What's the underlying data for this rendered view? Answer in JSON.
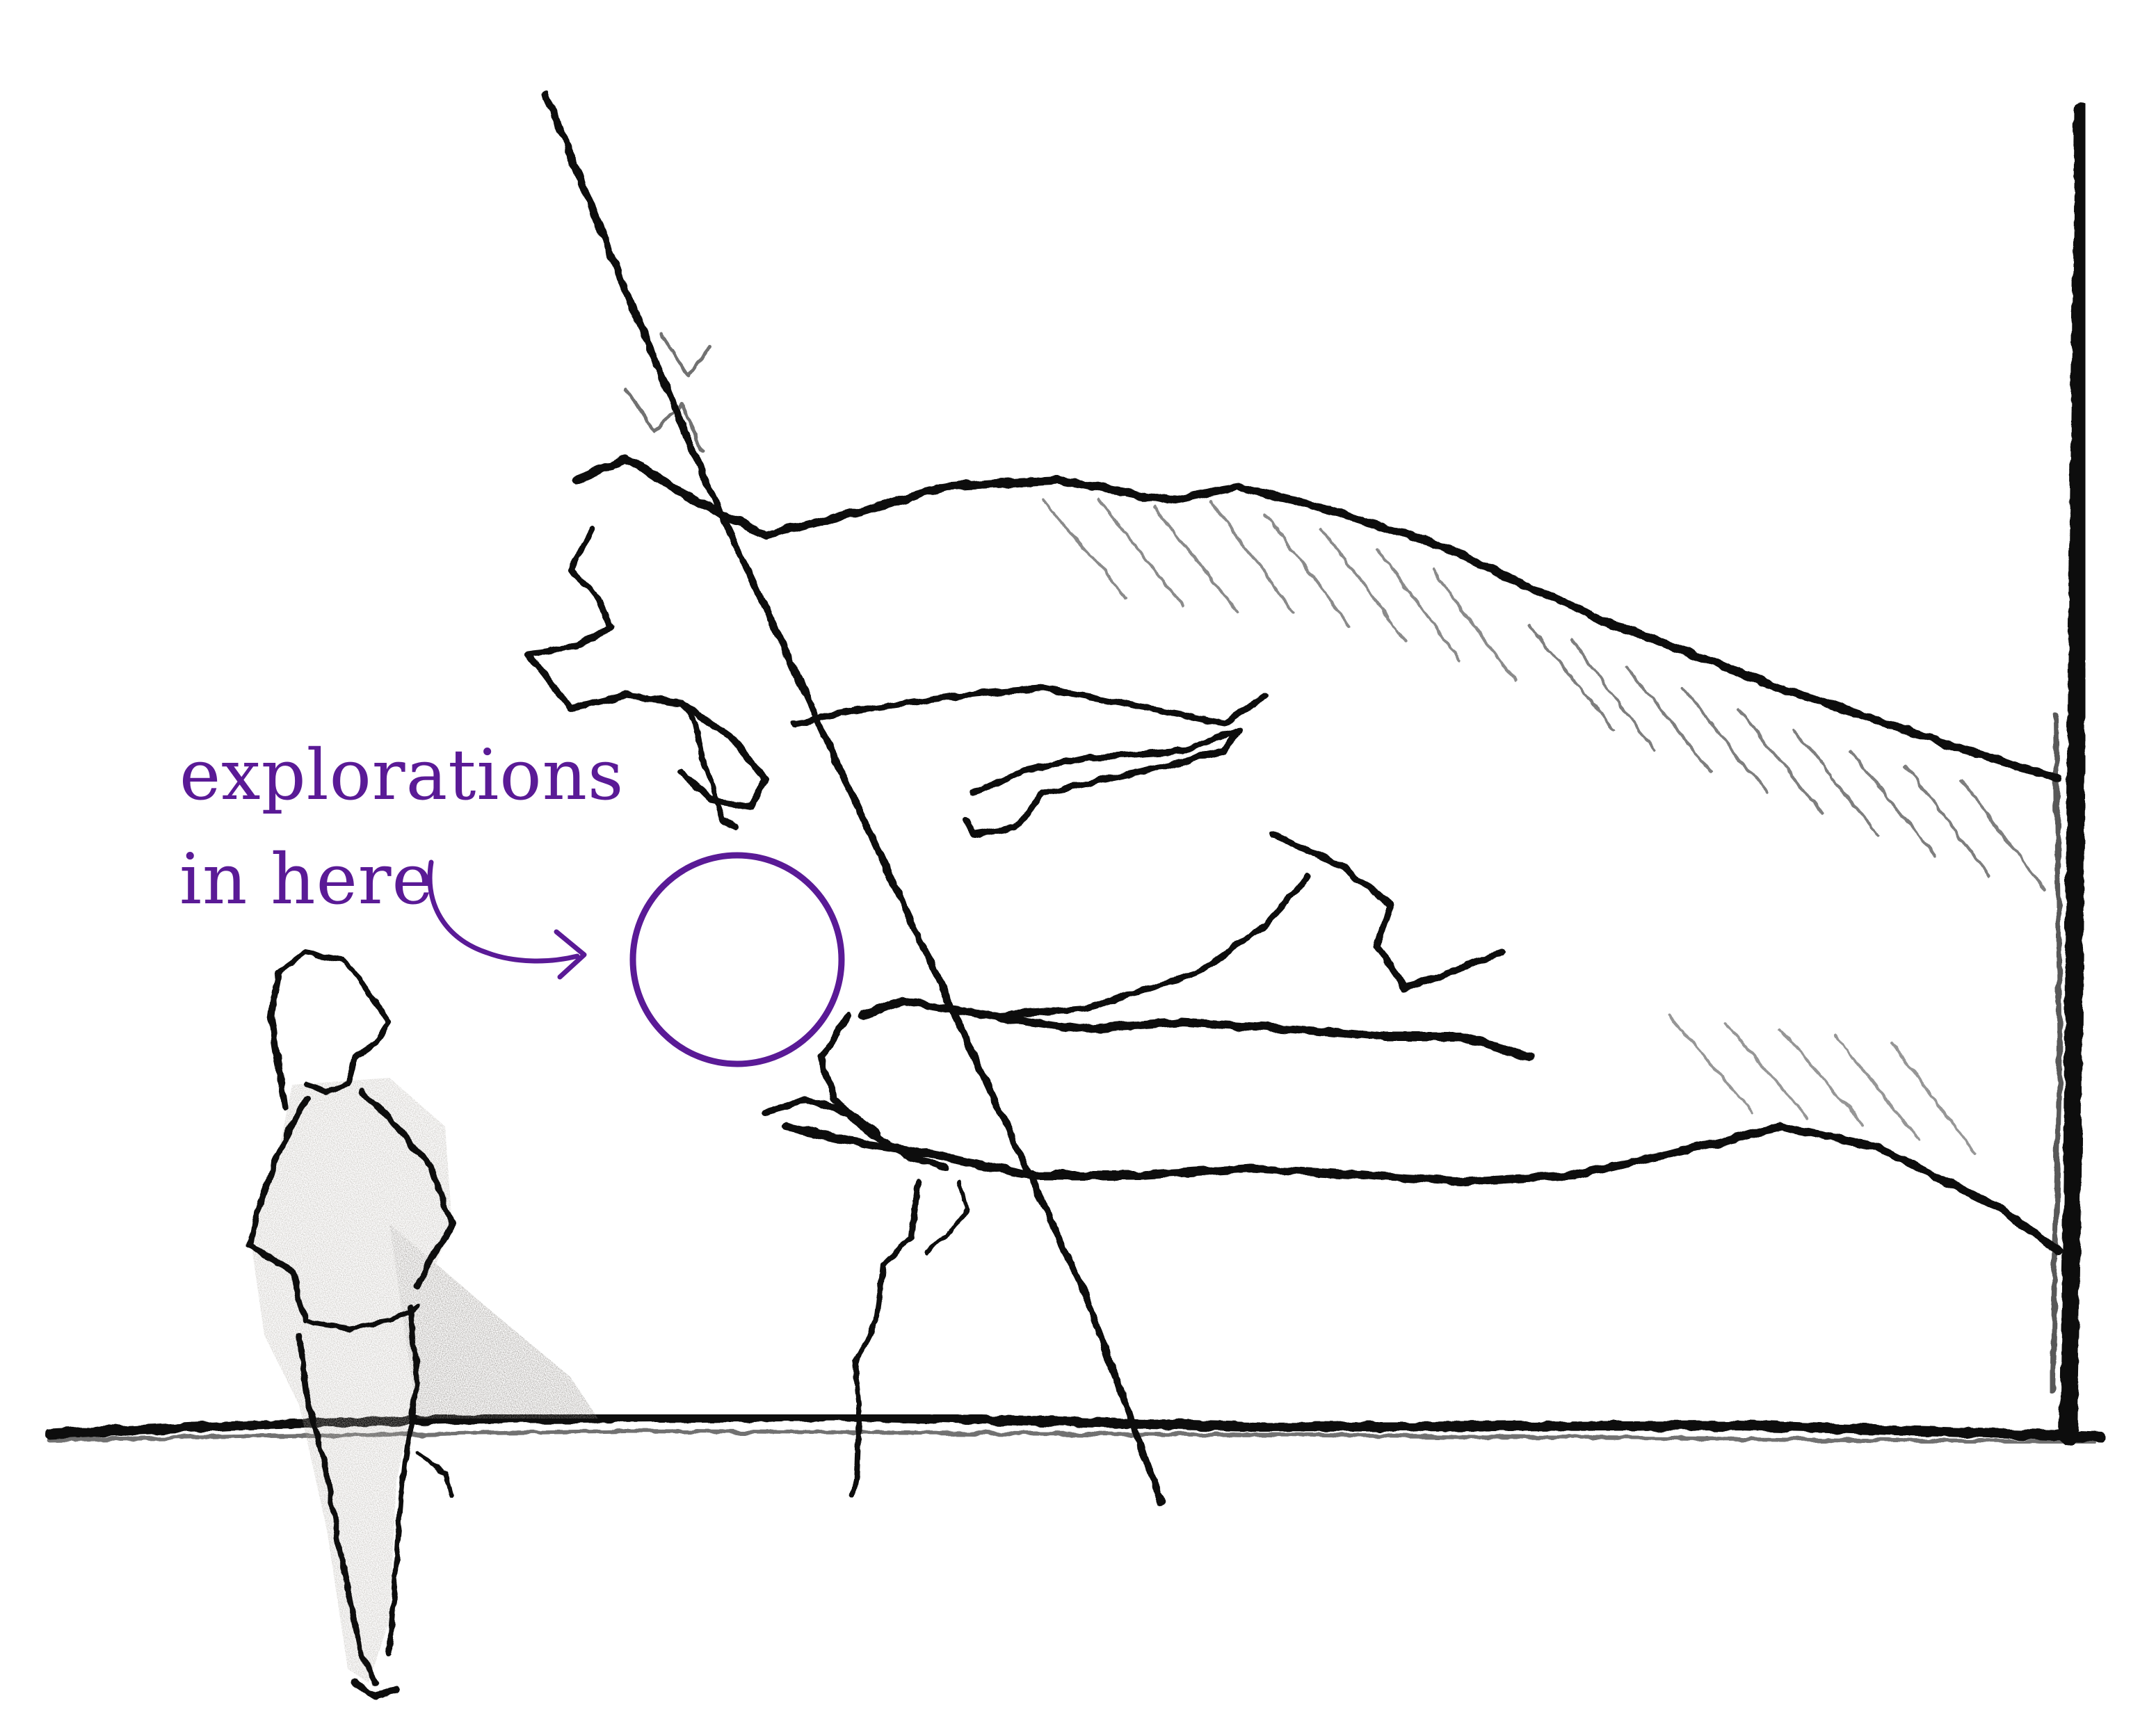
{
  "annotation": {
    "line1": "explorations",
    "line2": "in here"
  },
  "colors": {
    "annotation": "#5a1a96",
    "charcoal": "#111111",
    "background": "#ffffff"
  },
  "icons": {
    "marker": "circle-marker-icon",
    "arrow": "curved-arrow-icon"
  }
}
